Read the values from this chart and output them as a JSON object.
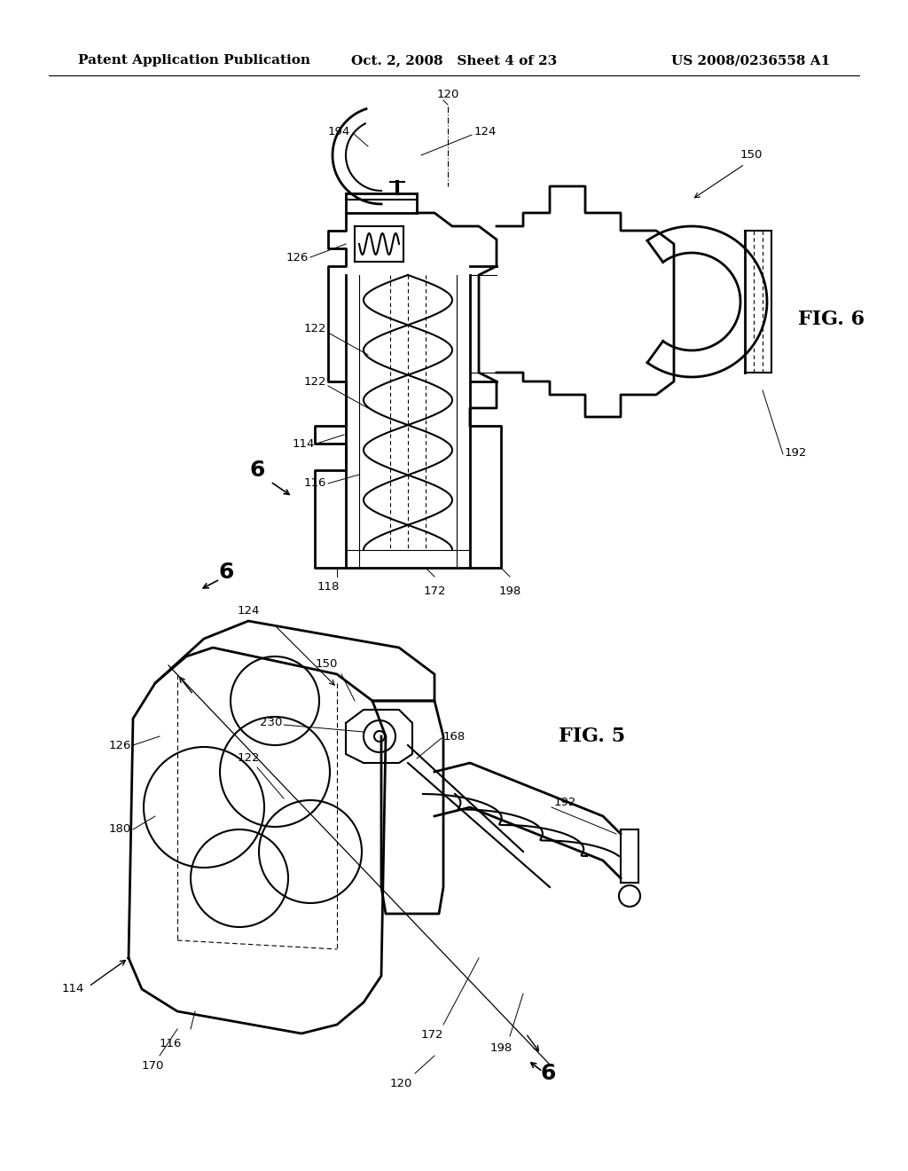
{
  "header_left": "Patent Application Publication",
  "header_center": "Oct. 2, 2008   Sheet 4 of 23",
  "header_right": "US 2008/0236558 A1",
  "fig5_label": "FIG. 5",
  "fig6_label": "FIG. 6",
  "bg_color": "#ffffff",
  "line_color": "#000000",
  "gray_color": "#888888",
  "header_fontsize": 11,
  "fig_label_fontsize": 16,
  "annotation_fontsize": 9.5
}
